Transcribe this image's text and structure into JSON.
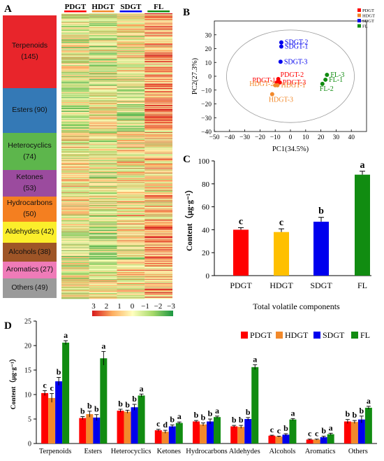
{
  "panels": {
    "a": "A",
    "b": "B",
    "c": "C",
    "d": "D"
  },
  "colors": {
    "PDGT": "#ff0000",
    "HDGT": "#f2892b",
    "SDGT": "#0000ee",
    "FL": "#118c11"
  },
  "chart_data": [
    {
      "type": "heatmap",
      "panel": "A",
      "columns": [
        "PDGT",
        "HDGT",
        "SDGT",
        "FL"
      ],
      "row_groups": [
        {
          "name": "Terpenoids",
          "count": "(145)",
          "color": "#e8252b"
        },
        {
          "name": "Esters",
          "count": "(90)",
          "color": "#3479b6"
        },
        {
          "name": "Heterocyclics",
          "count": "(74)",
          "color": "#5db64c"
        },
        {
          "name": "Ketones",
          "count": "(53)",
          "color": "#9b4b9e"
        },
        {
          "name": "Hydrocarbons",
          "count": "(50)",
          "color": "#f47f20"
        },
        {
          "name": "Aldehydes",
          "count": "(42)",
          "color": "#fbee2b"
        },
        {
          "name": "Alcohols",
          "count": "(38)",
          "color": "#9e5527"
        },
        {
          "name": "Aromatics",
          "count": "(27)",
          "color": "#ef7bb8"
        },
        {
          "name": "Others",
          "count": "(49)",
          "color": "#9a9a9a"
        }
      ],
      "color_scale": {
        "ticks": [
          "3",
          "2",
          "1",
          "0",
          "−1",
          "−2",
          "−3"
        ],
        "high": "#d7191c",
        "mid": "#ffffbf",
        "low": "#1a9641"
      }
    },
    {
      "type": "scatter",
      "panel": "B",
      "xlabel": "PC1(34.5%)",
      "ylabel": "PC2(27.3%)",
      "xlim": [
        -50,
        50
      ],
      "ylim": [
        -40,
        40
      ],
      "xticks": [
        "−50",
        "−40",
        "−30",
        "−20",
        "−10",
        "0",
        "10",
        "20",
        "30",
        "40"
      ],
      "yticks": [
        "−40",
        "−30",
        "−20",
        "−10",
        "0",
        "10",
        "20",
        "30"
      ],
      "legend": [
        "PDGT",
        "HDGT",
        "SDGT",
        "FL"
      ],
      "points": [
        {
          "group": "SDGT",
          "label": "SDGT-2",
          "x": -6,
          "y": 24.5
        },
        {
          "group": "SDGT",
          "label": "SDGT-1",
          "x": -6,
          "y": 21.5
        },
        {
          "group": "SDGT",
          "label": "SDGT-3",
          "x": -6.5,
          "y": 10.5
        },
        {
          "group": "PDGT",
          "label": "PDGT-2",
          "x": -8,
          "y": -2
        },
        {
          "group": "PDGT",
          "label": "PDGT-1",
          "x": -9,
          "y": -4.5
        },
        {
          "group": "PDGT",
          "label": "PDGT-3",
          "x": -7,
          "y": -4.5
        },
        {
          "group": "HDGT",
          "label": "HDGT-2",
          "x": -10,
          "y": -6.5
        },
        {
          "group": "HDGT",
          "label": "HDGT-1",
          "x": -8.5,
          "y": -6.5
        },
        {
          "group": "HDGT",
          "label": "HDGT-3",
          "x": -12,
          "y": -13
        },
        {
          "group": "FL",
          "label": "FL-3",
          "x": 24,
          "y": 1
        },
        {
          "group": "FL",
          "label": "FL-1",
          "x": 23,
          "y": -2.5
        },
        {
          "group": "FL",
          "label": "FL-2",
          "x": 21,
          "y": -5.5
        }
      ]
    },
    {
      "type": "bar",
      "panel": "C",
      "categories": [
        "PDGT",
        "HDGT",
        "SDGT",
        "FL"
      ],
      "values": [
        40,
        38,
        47,
        88
      ],
      "errors": [
        1.8,
        2.8,
        3.8,
        3
      ],
      "letters": [
        "c",
        "c",
        "b",
        "a"
      ],
      "ylabel": "Content（μg·g⁻¹）",
      "xlabel": "Total volatile components",
      "ylim": [
        0,
        100
      ],
      "yticks": [
        "0",
        "20",
        "40",
        "60",
        "80",
        "100"
      ]
    },
    {
      "type": "bar",
      "panel": "D",
      "categories": [
        "Terpenoids",
        "Esters",
        "Heterocyclics",
        "Ketones",
        "Hydrocarbons",
        "Aldehydes",
        "Alcohols",
        "Aromatics",
        "Others"
      ],
      "series": [
        {
          "name": "PDGT",
          "values": [
            10.3,
            5.2,
            6.7,
            2.7,
            4.5,
            3.5,
            1.6,
            0.8,
            4.5
          ],
          "errors": [
            0.5,
            0.3,
            0.3,
            0.2,
            0.2,
            0.2,
            0.1,
            0.1,
            0.4
          ],
          "letters": [
            "c",
            "b",
            "b",
            "c",
            "b",
            "b",
            "c",
            "c",
            "b"
          ]
        },
        {
          "name": "HDGT",
          "values": [
            9.3,
            6.0,
            6.5,
            2.4,
            3.9,
            3.4,
            1.4,
            0.8,
            4.4
          ],
          "errors": [
            0.9,
            0.6,
            0.3,
            0.3,
            0.3,
            0.3,
            0.1,
            0.1,
            0.3
          ],
          "letters": [
            "c",
            "b",
            "b",
            "d",
            "b",
            "b",
            "c",
            "c",
            "b"
          ]
        },
        {
          "name": "SDGT",
          "values": [
            12.7,
            5.3,
            7.4,
            3.5,
            4.5,
            5.0,
            1.8,
            1.3,
            4.9
          ],
          "errors": [
            0.8,
            0.6,
            0.6,
            0.3,
            0.5,
            0.3,
            0.2,
            0.2,
            0.7
          ],
          "letters": [
            "b",
            "b",
            "b",
            "b",
            "b",
            "b",
            "b",
            "b",
            "b"
          ]
        },
        {
          "name": "FL",
          "values": [
            20.6,
            17.4,
            9.8,
            4.2,
            5.4,
            15.6,
            4.9,
            1.9,
            7.3
          ],
          "errors": [
            0.4,
            1.4,
            0.3,
            0.2,
            0.2,
            0.5,
            0.2,
            0.2,
            0.3
          ],
          "letters": [
            "a",
            "a",
            "a",
            "a",
            "a",
            "a",
            "a",
            "a",
            "a"
          ]
        }
      ],
      "ylabel": "Content（μg·g⁻¹）",
      "ylim": [
        0,
        25
      ],
      "yticks": [
        "0",
        "5",
        "10",
        "15",
        "20",
        "25"
      ],
      "legend": [
        "PDGT",
        "HDGT",
        "SDGT",
        "FL"
      ]
    }
  ]
}
